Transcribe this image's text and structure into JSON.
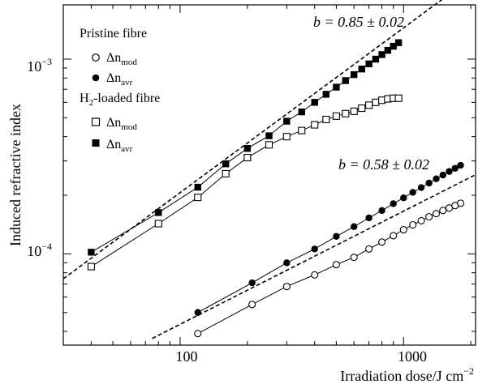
{
  "chart_data": {
    "type": "scatter",
    "xlabel": "Irradiation dose/J cm",
    "xlabel_sup": "−2",
    "ylabel": "Induced refractive index",
    "x_scale": "log",
    "y_scale": "log",
    "xlim": [
      30,
      2100
    ],
    "ylim": [
      3.4e-05,
      0.0019
    ],
    "x_ticks": [
      100,
      1000
    ],
    "x_tick_labels": [
      "100",
      "1000"
    ],
    "y_ticks": [
      0.0001,
      0.001
    ],
    "y_tick_labels": [
      {
        "base": "10",
        "exp": "−4"
      },
      {
        "base": "10",
        "exp": "−3"
      }
    ],
    "grid": false,
    "legend": {
      "groups": [
        {
          "title": "Pristine fibre",
          "entries": [
            {
              "symbol": "open-circle",
              "main": "Δn",
              "sub": "mod"
            },
            {
              "symbol": "filled-circle",
              "main": "Δn",
              "sub": "avr"
            }
          ]
        },
        {
          "title_pre": "H",
          "title_sub": "2",
          "title_post": "-loaded fibre",
          "entries": [
            {
              "symbol": "open-square",
              "main": "Δn",
              "sub": "mod"
            },
            {
              "symbol": "filled-square",
              "main": "Δn",
              "sub": "avr"
            }
          ]
        }
      ],
      "placement": "top-left"
    },
    "annotations": [
      {
        "text": "b = 0.85 ± 0.02"
      },
      {
        "text": "b = 0.58 ± 0.02"
      }
    ],
    "series": [
      {
        "marker": "open-circle",
        "connect": true,
        "x": [
          120,
          210,
          300,
          400,
          500,
          600,
          700,
          800,
          900,
          1000,
          1100,
          1200,
          1300,
          1400,
          1500,
          1600,
          1700,
          1800
        ],
        "y": [
          3.9e-05,
          5.5e-05,
          6.8e-05,
          7.8e-05,
          8.8e-05,
          9.6e-05,
          0.000106,
          0.000115,
          0.000124,
          0.000133,
          0.000141,
          0.000148,
          0.000155,
          0.000161,
          0.000167,
          0.000172,
          0.000177,
          0.000182
        ]
      },
      {
        "marker": "filled-circle",
        "connect": true,
        "x": [
          120,
          210,
          300,
          400,
          500,
          600,
          700,
          800,
          900,
          1000,
          1100,
          1200,
          1300,
          1400,
          1500,
          1600,
          1700,
          1800
        ],
        "y": [
          5e-05,
          7.1e-05,
          9e-05,
          0.000106,
          0.000123,
          0.000138,
          0.000153,
          0.000167,
          0.000181,
          0.000194,
          0.000207,
          0.000219,
          0.000231,
          0.000243,
          0.000254,
          0.000265,
          0.000275,
          0.000285
        ]
      },
      {
        "marker": "open-square",
        "connect": true,
        "x": [
          40,
          80,
          120,
          160,
          200,
          250,
          300,
          350,
          400,
          450,
          500,
          550,
          600,
          650,
          700,
          750,
          800,
          850,
          900,
          950
        ],
        "y": [
          8.6e-05,
          0.000143,
          0.000195,
          0.000258,
          0.000312,
          0.000363,
          0.0004,
          0.00043,
          0.00046,
          0.00049,
          0.00051,
          0.000525,
          0.00054,
          0.00056,
          0.00058,
          0.0006,
          0.000615,
          0.000625,
          0.00063,
          0.00063
        ]
      },
      {
        "marker": "filled-square",
        "connect": true,
        "x": [
          40,
          80,
          120,
          160,
          200,
          250,
          300,
          350,
          400,
          450,
          500,
          550,
          600,
          650,
          700,
          750,
          800,
          850,
          900,
          950
        ],
        "y": [
          0.000102,
          0.000163,
          0.00022,
          0.00029,
          0.000348,
          0.000404,
          0.00048,
          0.000536,
          0.0006,
          0.00066,
          0.000718,
          0.000776,
          0.000833,
          0.00089,
          0.000946,
          0.001,
          0.001055,
          0.00111,
          0.001165,
          0.001215
        ]
      }
    ],
    "fit_lines": [
      {
        "style": "dashed",
        "slope": 0.85,
        "x": [
          30,
          1800
        ],
        "y": [
          7.45e-05,
          0.00238
        ]
      },
      {
        "style": "dashed",
        "slope": 0.58,
        "x": [
          75,
          2100
        ],
        "y": [
          3.68e-05,
          0.000255
        ]
      }
    ]
  }
}
